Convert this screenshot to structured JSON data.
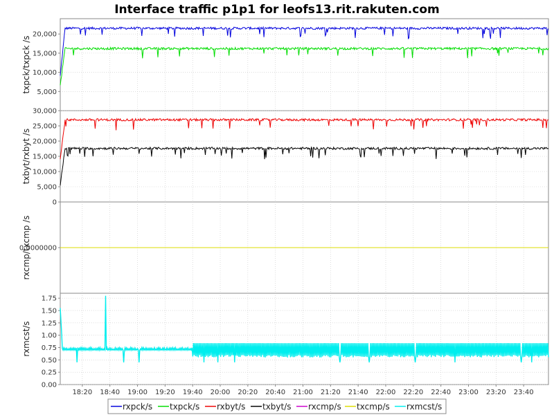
{
  "chart_data": {
    "type": "line",
    "title": "Interface traffic p1p1 for leofs13.rit.rakuten.com",
    "x_ticks": [
      "18:20",
      "18:40",
      "19:00",
      "19:20",
      "19:40",
      "20:00",
      "20:20",
      "20:40",
      "21:00",
      "21:20",
      "21:40",
      "22:00",
      "22:20",
      "22:40",
      "23:00",
      "23:20",
      "23:40"
    ],
    "x_range": [
      "18:04",
      "23:58"
    ],
    "grid": true,
    "legend_placement": "bottom",
    "panels": [
      {
        "ylabel": "txpck/txpck /s",
        "ylim": [
          0,
          24000
        ],
        "y_ticks": [
          "5,000",
          "10,000",
          "15,000",
          "20,000"
        ],
        "y_tick_values": [
          5000,
          10000,
          15000,
          20000
        ],
        "series": [
          {
            "name": "rxpck/s",
            "color": "#0000dd",
            "steady": 21500,
            "start": 9000
          },
          {
            "name": "txpck/s",
            "color": "#00dd00",
            "steady": 16200,
            "start": 6500
          }
        ]
      },
      {
        "ylabel": "txbyt/rxbyt /s",
        "ylim": [
          0,
          30000
        ],
        "y_ticks": [
          "0",
          "5,000",
          "10,000",
          "15,000",
          "20,000",
          "25,000",
          "30,000"
        ],
        "y_tick_values": [
          0,
          5000,
          10000,
          15000,
          20000,
          25000,
          30000
        ],
        "series": [
          {
            "name": "rxbyt/s",
            "color": "#ee0000",
            "steady": 27000,
            "start": 14000
          },
          {
            "name": "txbyt/s",
            "color": "#000000",
            "steady": 17600,
            "start": 5500
          }
        ]
      },
      {
        "ylabel": "rxcmp/txcmp /s",
        "ylim": [
          -1,
          1
        ],
        "y_ticks": [
          "0.0000000"
        ],
        "y_tick_values": [
          0
        ],
        "series": [
          {
            "name": "rxcmp/s",
            "color": "#cc00cc",
            "steady": 0,
            "start": 0
          },
          {
            "name": "txcmp/s",
            "color": "#dddd00",
            "steady": 0,
            "start": 0
          }
        ]
      },
      {
        "ylabel": "rxmcst/s",
        "ylim": [
          0,
          1.85
        ],
        "y_ticks": [
          "0.00",
          "0.25",
          "0.50",
          "0.75",
          "1.00",
          "1.25",
          "1.50",
          "1.75"
        ],
        "y_tick_values": [
          0,
          0.25,
          0.5,
          0.75,
          1.0,
          1.25,
          1.5,
          1.75
        ],
        "series": [
          {
            "name": "rxmcst/s",
            "color": "#00eeee",
            "steady": 0.7,
            "start": 1.55,
            "spike_at": "18:37",
            "spike_value": 1.8
          }
        ]
      }
    ],
    "legend": [
      {
        "name": "rxpck/s",
        "color": "#0000dd"
      },
      {
        "name": "txpck/s",
        "color": "#00dd00"
      },
      {
        "name": "rxbyt/s",
        "color": "#ee0000"
      },
      {
        "name": "txbyt/s",
        "color": "#000000"
      },
      {
        "name": "rxcmp/s",
        "color": "#cc00cc"
      },
      {
        "name": "txcmp/s",
        "color": "#dddd00"
      },
      {
        "name": "rxmcst/s",
        "color": "#00eeee"
      }
    ]
  }
}
